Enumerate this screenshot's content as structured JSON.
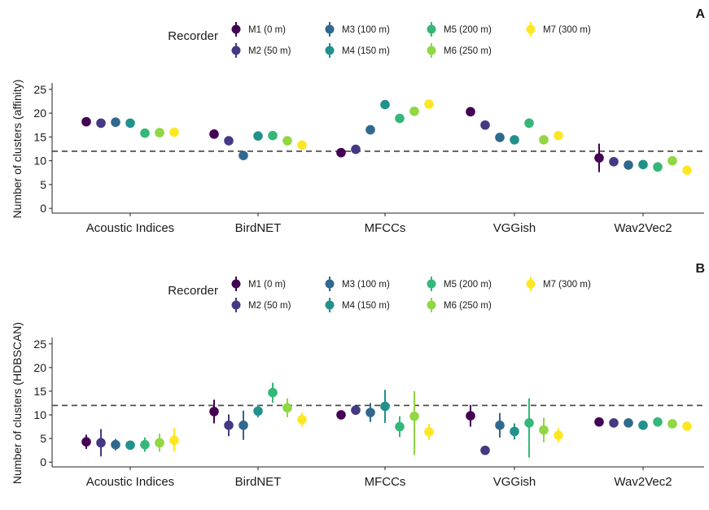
{
  "chart_data": [
    {
      "type": "scatter",
      "panel_label": "A",
      "ylabel": "Number of clusters (affinity)",
      "ylim": [
        -1,
        26
      ],
      "yticks": [
        0,
        5,
        10,
        15,
        20,
        25
      ],
      "reference_line": 12,
      "categories": [
        "Acoustic Indices",
        "BirdNET",
        "MFCCs",
        "VGGish",
        "Wav2Vec2"
      ],
      "legend": {
        "title": "Recorder",
        "entries": [
          {
            "label": "M1 (0 m)",
            "color": "#440154"
          },
          {
            "label": "M2 (50 m)",
            "color": "#443983"
          },
          {
            "label": "M3 (100 m)",
            "color": "#31688e"
          },
          {
            "label": "M4 (150 m)",
            "color": "#21918c"
          },
          {
            "label": "M5 (200 m)",
            "color": "#35b779"
          },
          {
            "label": "M6 (250 m)",
            "color": "#90d743"
          },
          {
            "label": "M7 (300 m)",
            "color": "#fde725"
          }
        ]
      },
      "series": [
        {
          "name": "M1 (0 m)",
          "values": [
            18.2,
            15.6,
            11.7,
            20.3,
            10.6
          ],
          "lower": [
            17.6,
            14.8,
            11.1,
            19.7,
            7.6
          ],
          "upper": [
            18.8,
            16.4,
            12.3,
            20.9,
            13.6
          ]
        },
        {
          "name": "M2 (50 m)",
          "values": [
            17.9,
            14.2,
            12.4,
            17.5,
            9.8
          ],
          "lower": [
            17.3,
            13.5,
            11.8,
            16.9,
            9.3
          ],
          "upper": [
            18.5,
            14.9,
            13.0,
            18.1,
            10.3
          ]
        },
        {
          "name": "M3 (100 m)",
          "values": [
            18.1,
            11.1,
            16.5,
            14.9,
            9.1
          ],
          "lower": [
            17.5,
            10.5,
            15.9,
            14.3,
            8.7
          ],
          "upper": [
            18.7,
            11.7,
            17.1,
            15.5,
            9.5
          ]
        },
        {
          "name": "M4 (150 m)",
          "values": [
            17.9,
            15.2,
            21.8,
            14.4,
            9.2
          ],
          "lower": [
            17.3,
            14.6,
            21.2,
            13.6,
            8.8
          ],
          "upper": [
            18.5,
            15.8,
            22.4,
            15.2,
            9.6
          ]
        },
        {
          "name": "M5 (200 m)",
          "values": [
            15.8,
            15.3,
            18.9,
            17.9,
            8.7
          ],
          "lower": [
            15.2,
            14.6,
            18.1,
            16.9,
            8.3
          ],
          "upper": [
            16.4,
            16.0,
            19.7,
            18.9,
            9.1
          ]
        },
        {
          "name": "M6 (250 m)",
          "values": [
            15.9,
            14.2,
            20.4,
            14.4,
            10.0
          ],
          "lower": [
            15.3,
            13.6,
            19.6,
            13.8,
            9.5
          ],
          "upper": [
            16.5,
            14.8,
            21.2,
            15.0,
            10.5
          ]
        },
        {
          "name": "M7 (300 m)",
          "values": [
            16.0,
            13.3,
            21.9,
            15.3,
            8.0
          ],
          "lower": [
            15.3,
            12.6,
            21.3,
            14.7,
            7.5
          ],
          "upper": [
            16.7,
            14.0,
            22.5,
            15.9,
            8.5
          ]
        }
      ]
    },
    {
      "type": "scatter",
      "panel_label": "B",
      "ylabel": "Number of clusters (HDBSCAN)",
      "ylim": [
        -1,
        26
      ],
      "yticks": [
        0,
        5,
        10,
        15,
        20,
        25
      ],
      "reference_line": 12,
      "categories": [
        "Acoustic Indices",
        "BirdNET",
        "MFCCs",
        "VGGish",
        "Wav2Vec2"
      ],
      "legend": {
        "title": "Recorder",
        "entries": [
          {
            "label": "M1 (0 m)",
            "color": "#440154"
          },
          {
            "label": "M2 (50 m)",
            "color": "#443983"
          },
          {
            "label": "M3 (100 m)",
            "color": "#31688e"
          },
          {
            "label": "M4 (150 m)",
            "color": "#21918c"
          },
          {
            "label": "M5 (200 m)",
            "color": "#35b779"
          },
          {
            "label": "M6 (250 m)",
            "color": "#90d743"
          },
          {
            "label": "M7 (300 m)",
            "color": "#fde725"
          }
        ]
      },
      "series": [
        {
          "name": "M1 (0 m)",
          "values": [
            4.3,
            10.7,
            10.0,
            9.8,
            8.5
          ],
          "lower": [
            2.8,
            8.2,
            9.4,
            7.5,
            7.9
          ],
          "upper": [
            5.8,
            13.2,
            10.6,
            12.1,
            9.1
          ]
        },
        {
          "name": "M2 (50 m)",
          "values": [
            4.1,
            7.8,
            11.0,
            2.5,
            8.3
          ],
          "lower": [
            1.2,
            5.5,
            10.2,
            1.8,
            7.7
          ],
          "upper": [
            7.0,
            10.1,
            11.8,
            3.2,
            8.9
          ]
        },
        {
          "name": "M3 (100 m)",
          "values": [
            3.7,
            7.8,
            10.5,
            7.8,
            8.3
          ],
          "lower": [
            2.5,
            4.7,
            8.5,
            5.2,
            7.7
          ],
          "upper": [
            4.9,
            10.9,
            12.5,
            10.4,
            8.9
          ]
        },
        {
          "name": "M4 (150 m)",
          "values": [
            3.6,
            10.8,
            11.8,
            6.5,
            7.8
          ],
          "lower": [
            2.7,
            9.5,
            8.3,
            4.8,
            7.2
          ],
          "upper": [
            4.5,
            12.1,
            15.3,
            8.2,
            8.4
          ]
        },
        {
          "name": "M5 (200 m)",
          "values": [
            3.7,
            14.7,
            7.5,
            8.3,
            8.5
          ],
          "lower": [
            2.2,
            12.6,
            5.3,
            1.0,
            7.9
          ],
          "upper": [
            5.2,
            16.8,
            9.7,
            13.5,
            9.1
          ]
        },
        {
          "name": "M6 (250 m)",
          "values": [
            4.1,
            11.5,
            9.7,
            6.8,
            8.1
          ],
          "lower": [
            2.2,
            9.5,
            1.5,
            4.2,
            7.5
          ],
          "upper": [
            6.0,
            13.5,
            15.0,
            9.4,
            8.7
          ]
        },
        {
          "name": "M7 (300 m)",
          "values": [
            4.6,
            9.0,
            6.4,
            5.7,
            7.6
          ],
          "lower": [
            2.2,
            7.5,
            4.7,
            4.2,
            7.0
          ],
          "upper": [
            7.2,
            10.5,
            8.1,
            7.2,
            8.2
          ]
        }
      ]
    }
  ]
}
